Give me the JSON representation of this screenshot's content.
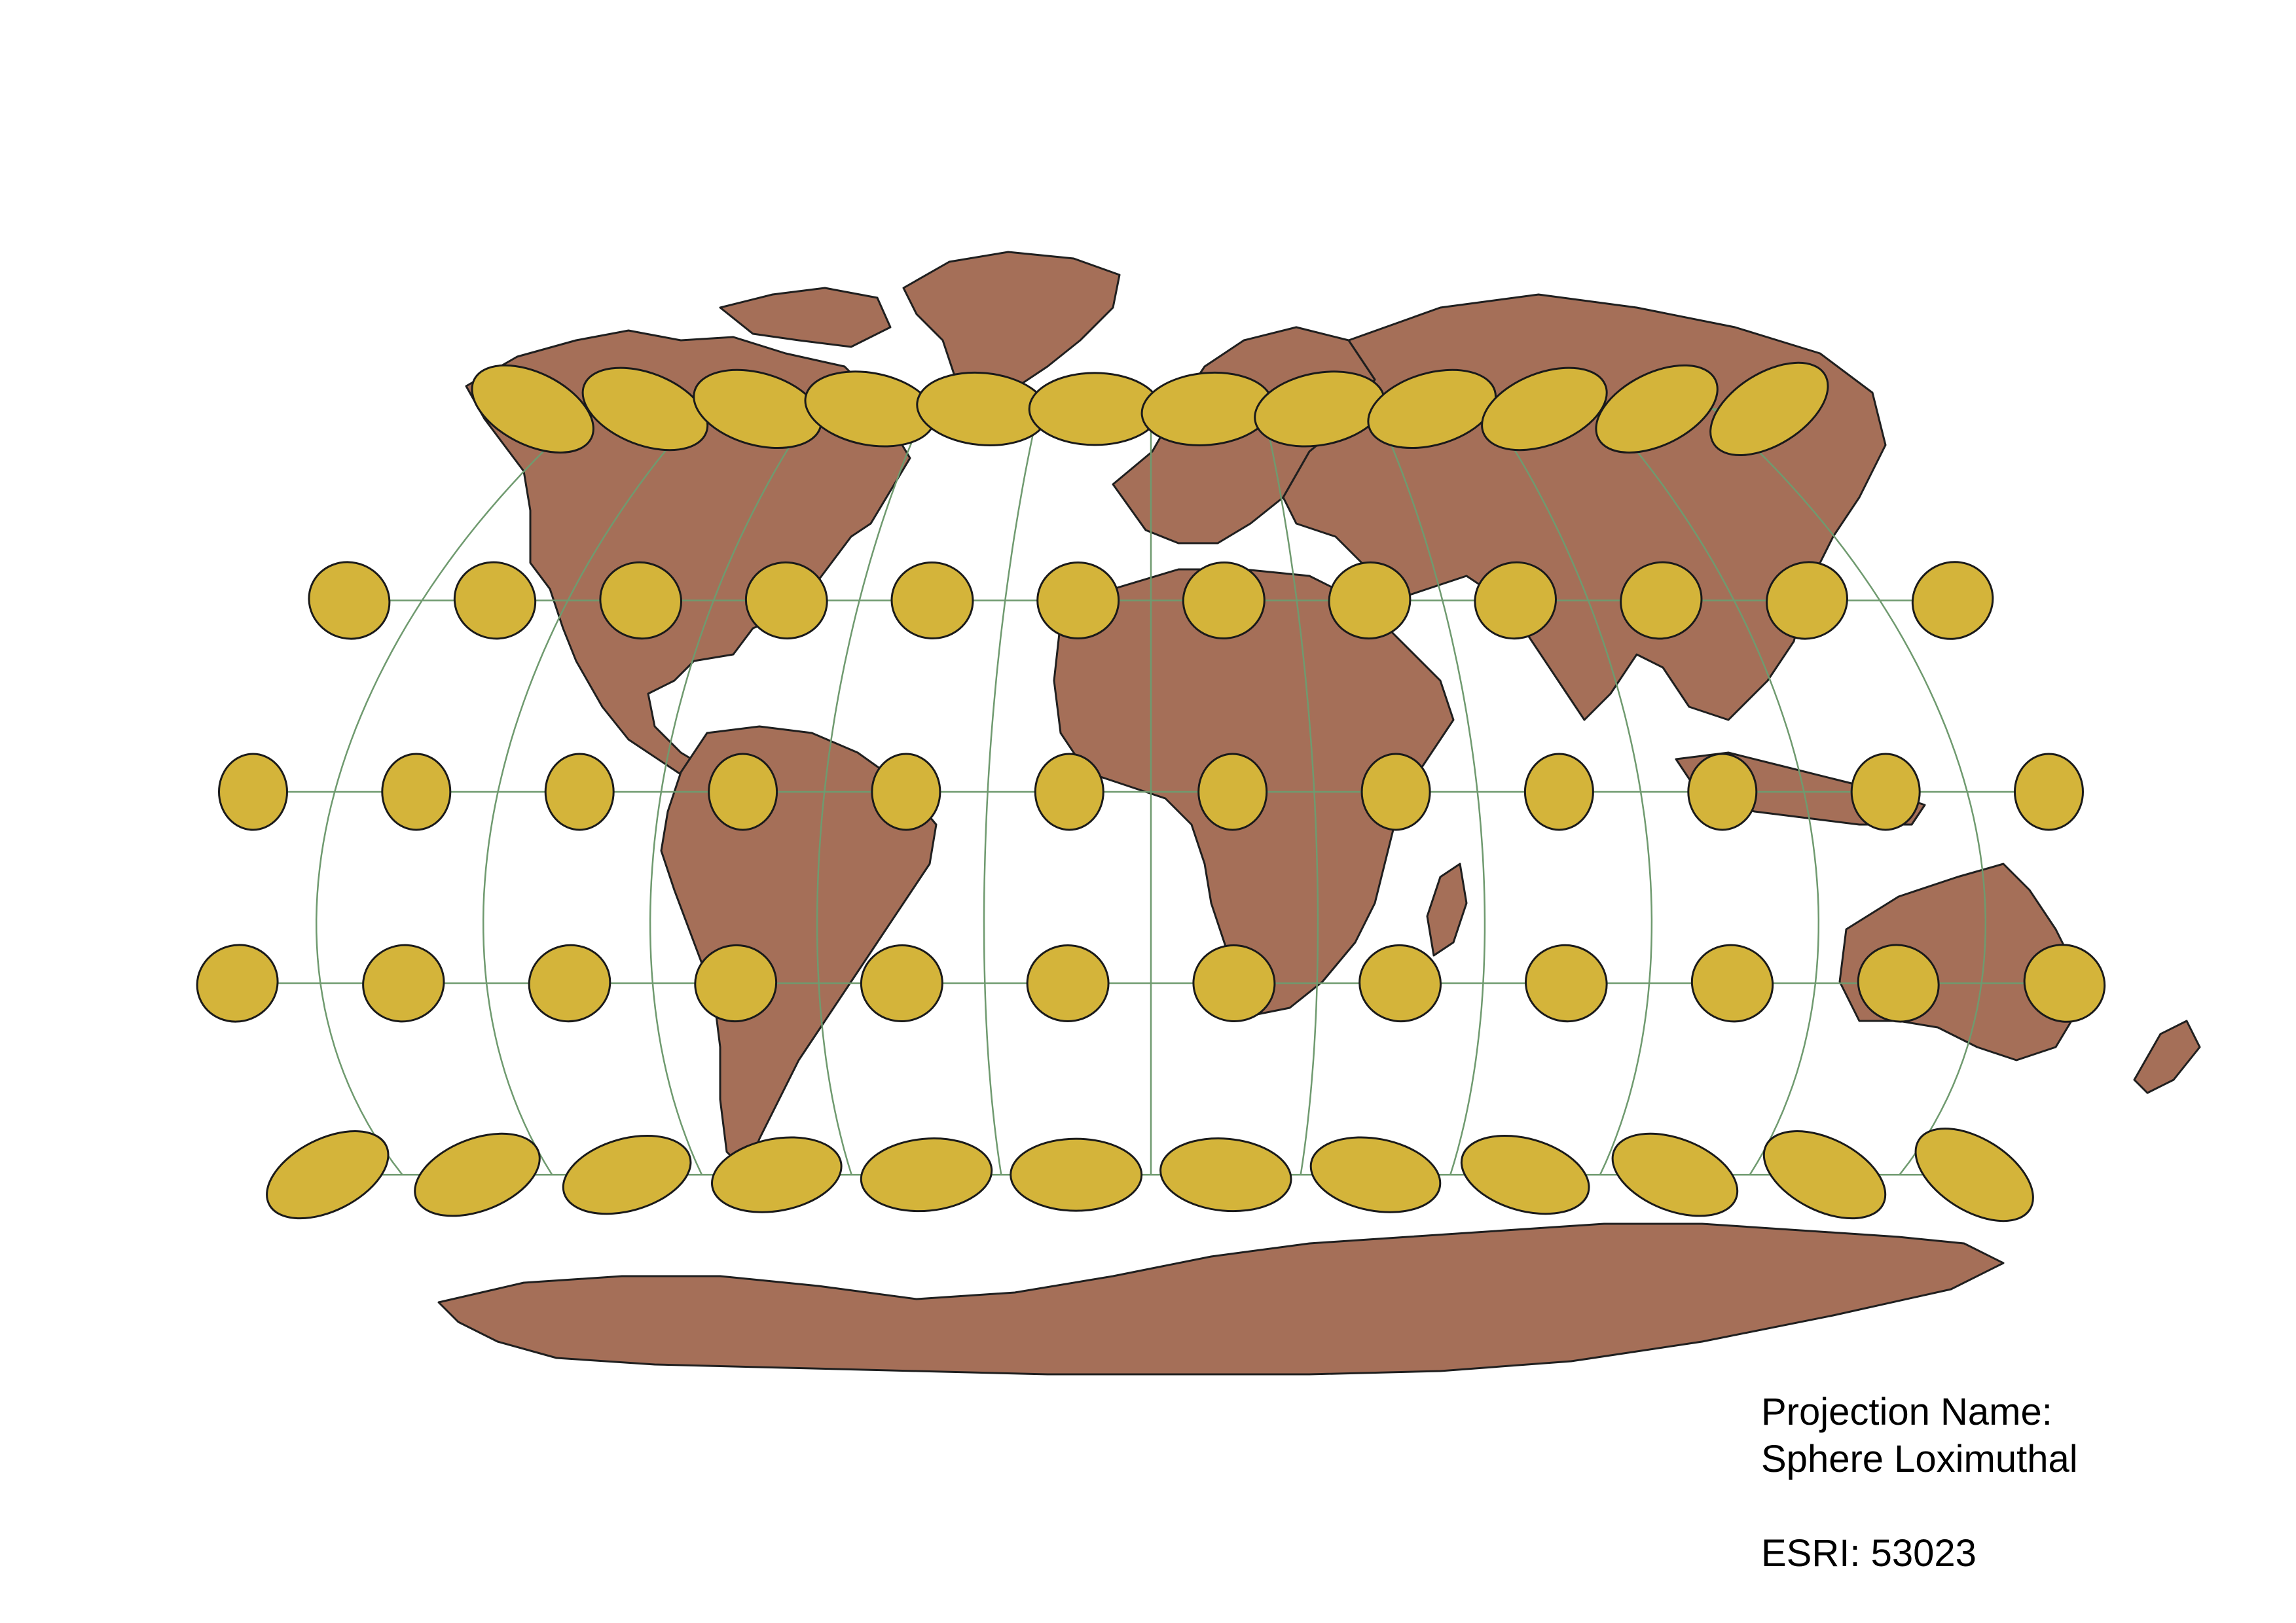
{
  "map": {
    "projection_label": "Projection Name:",
    "projection_name": "Sphere Loximuthal",
    "esri_code_text": "ESRI: 53023",
    "colors": {
      "land": "#A56F58",
      "land_border": "#1f1f1f",
      "graticule": "#6f9a6f",
      "tissot_fill": "#D4B43A",
      "tissot_stroke": "#1a1a1a",
      "background": "#ffffff"
    },
    "graticule": {
      "latitudes": [
        60,
        30,
        0,
        -30,
        -60
      ],
      "longitudes": [
        -150,
        -120,
        -90,
        -60,
        -30,
        0,
        30,
        60,
        90,
        120,
        150
      ]
    },
    "tissot_indicatrices": {
      "latitudes": [
        60,
        30,
        0,
        -30,
        -60
      ],
      "longitudes": [
        -150,
        -120,
        -90,
        -60,
        -30,
        0,
        30,
        60,
        90,
        120,
        150,
        180
      ]
    }
  }
}
